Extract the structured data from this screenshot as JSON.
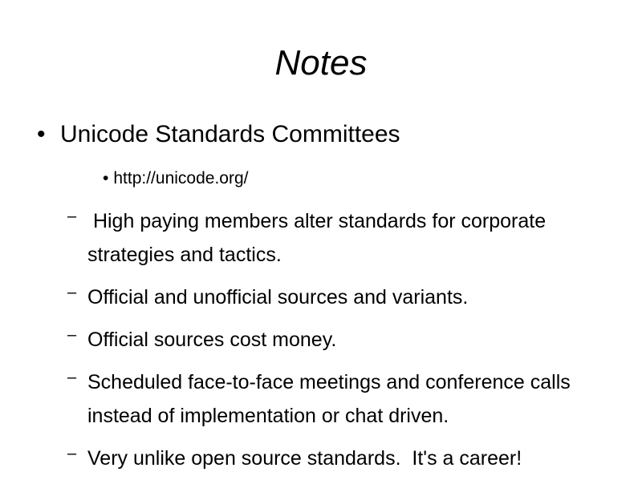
{
  "slide": {
    "title": "Notes",
    "level1": {
      "bullet": "•",
      "text": "Unicode Standards Committees"
    },
    "level2": {
      "bullet": "•",
      "text": "http://unicode.org/"
    },
    "dash_bullet": "–",
    "items": [
      " High paying members alter standards for corporate strategies and tactics.",
      "Official and unofficial sources and variants.",
      "Official sources cost money.",
      "Scheduled face-to-face meetings and conference calls instead of implementation or chat driven.",
      "Very unlike open source standards.  It's a career!"
    ]
  }
}
